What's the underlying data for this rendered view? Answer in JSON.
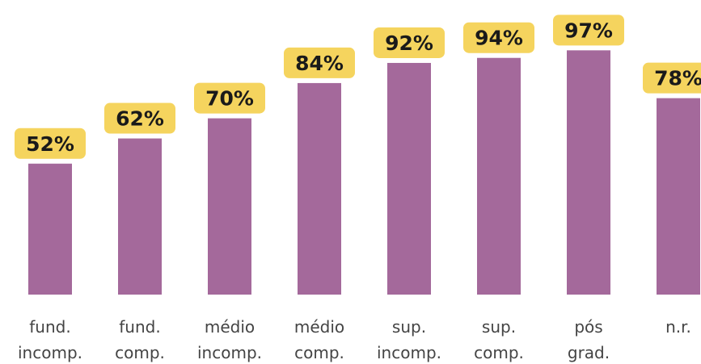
{
  "chart_data": {
    "type": "bar",
    "categories": [
      [
        "fund.",
        "incomp."
      ],
      [
        "fund.",
        "comp."
      ],
      [
        "médio",
        "incomp."
      ],
      [
        "médio",
        "comp."
      ],
      [
        "sup.",
        "incomp."
      ],
      [
        "sup.",
        "comp."
      ],
      [
        "pós",
        "grad."
      ],
      [
        "n.r."
      ]
    ],
    "values": [
      52,
      62,
      70,
      84,
      92,
      94,
      97,
      78
    ],
    "value_labels": [
      "52%",
      "62%",
      "70%",
      "84%",
      "92%",
      "94%",
      "97%",
      "78%"
    ],
    "ylim": [
      0,
      100
    ],
    "unit": "%",
    "grid": false,
    "legend": "none",
    "colors": {
      "bar": "#a4699b",
      "label_box": "#f5d45e",
      "label_text": "#1a1a1a",
      "category_text": "#444444"
    }
  }
}
